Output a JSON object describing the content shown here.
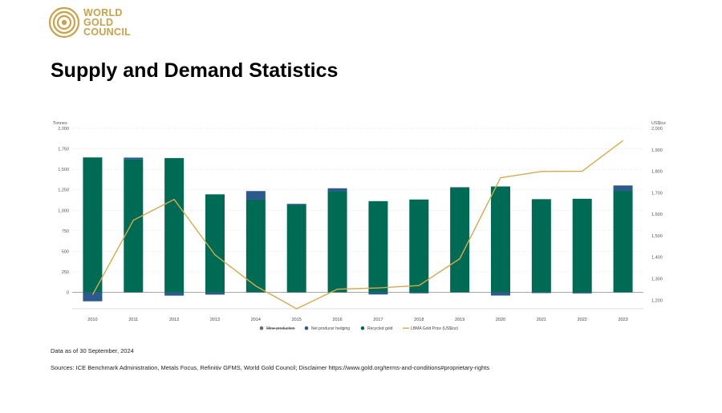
{
  "logo": {
    "lines": [
      "WORLD",
      "GOLD",
      "COUNCIL"
    ]
  },
  "title": "Supply and Demand Statistics",
  "chart_data": {
    "type": "bar",
    "categories": [
      "2010",
      "2011",
      "2012",
      "2013",
      "2014",
      "2015",
      "2016",
      "2017",
      "2018",
      "2019",
      "2020",
      "2021",
      "2022",
      "2023"
    ],
    "left_axis": {
      "label": "Tonnes",
      "ticks": [
        "2,000",
        "1,750",
        "1,500",
        "1,250",
        "1,000",
        "750",
        "500",
        "250",
        "0"
      ],
      "ylim": [
        -200,
        2000
      ]
    },
    "right_axis": {
      "label": "US$/oz",
      "ticks": [
        "2,000",
        "1,900",
        "1,800",
        "1,700",
        "1,600",
        "1,500",
        "1,400",
        "1,300",
        "1,200"
      ],
      "ylim": [
        1160,
        2000
      ]
    },
    "series": [
      {
        "name": "Mine production",
        "type": "bar",
        "color": "#6b6b6b",
        "values": [
          0,
          0,
          0,
          0,
          0,
          0,
          0,
          0,
          0,
          0,
          0,
          0,
          0,
          0
        ],
        "hidden": true
      },
      {
        "name": "Net producer hedging",
        "type": "bar",
        "color": "#2c5a8c",
        "values": [
          -109,
          23,
          -40,
          -28,
          105,
          13,
          37,
          -26,
          -12,
          6,
          -39,
          -9,
          -13,
          66
        ]
      },
      {
        "name": "Recycled gold",
        "type": "bar",
        "color": "#006b54",
        "values": [
          1645,
          1620,
          1637,
          1195,
          1130,
          1066,
          1232,
          1112,
          1132,
          1276,
          1291,
          1136,
          1141,
          1237
        ]
      },
      {
        "name": "LBMA Gold Price (US$/oz)",
        "type": "line",
        "axis": "right",
        "color": "#d4aa4e",
        "values": [
          1225,
          1572,
          1669,
          1411,
          1266,
          1160,
          1251,
          1257,
          1268,
          1393,
          1770,
          1799,
          1800,
          1943
        ]
      }
    ],
    "legend": [
      "Mine production",
      "Net producer hedging",
      "Recycled gold",
      "LBMA Gold Price (US$/oz)"
    ],
    "legend_placement": "bottom-center",
    "grid": true
  },
  "footnote_date": "Data as of 30 September, 2024",
  "footnote_sources": "Sources: ICE Benchmark Administration, Metals Focus, Refinitiv GFMS, World Gold Council; Disclaimer https://www.gold.org/terms-and-conditions#proprietary-rights"
}
